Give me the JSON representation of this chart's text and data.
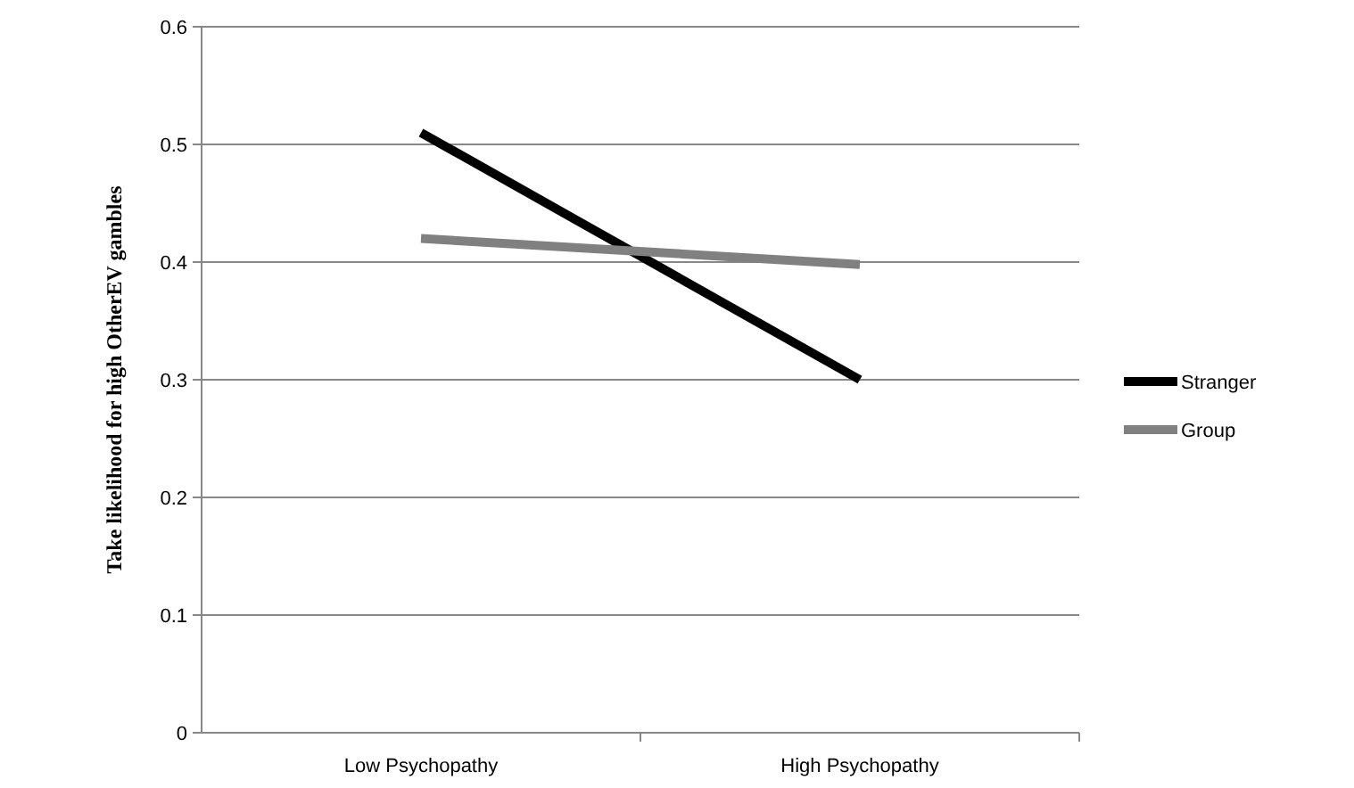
{
  "chart_data": {
    "type": "line",
    "ylabel": "Take likelihood for high OtherEV  gambles",
    "categories": [
      "Low Psychopathy",
      "High Psychopathy"
    ],
    "series": [
      {
        "name": "Stranger",
        "color": "#000000",
        "values": [
          0.51,
          0.3
        ]
      },
      {
        "name": "Group",
        "color": "#808080",
        "values": [
          0.42,
          0.398
        ]
      }
    ],
    "ylim": [
      0,
      0.6
    ],
    "yticks": [
      0,
      0.1,
      0.2,
      0.3,
      0.4,
      0.5,
      0.6
    ],
    "grid": "y",
    "legend": "right"
  }
}
